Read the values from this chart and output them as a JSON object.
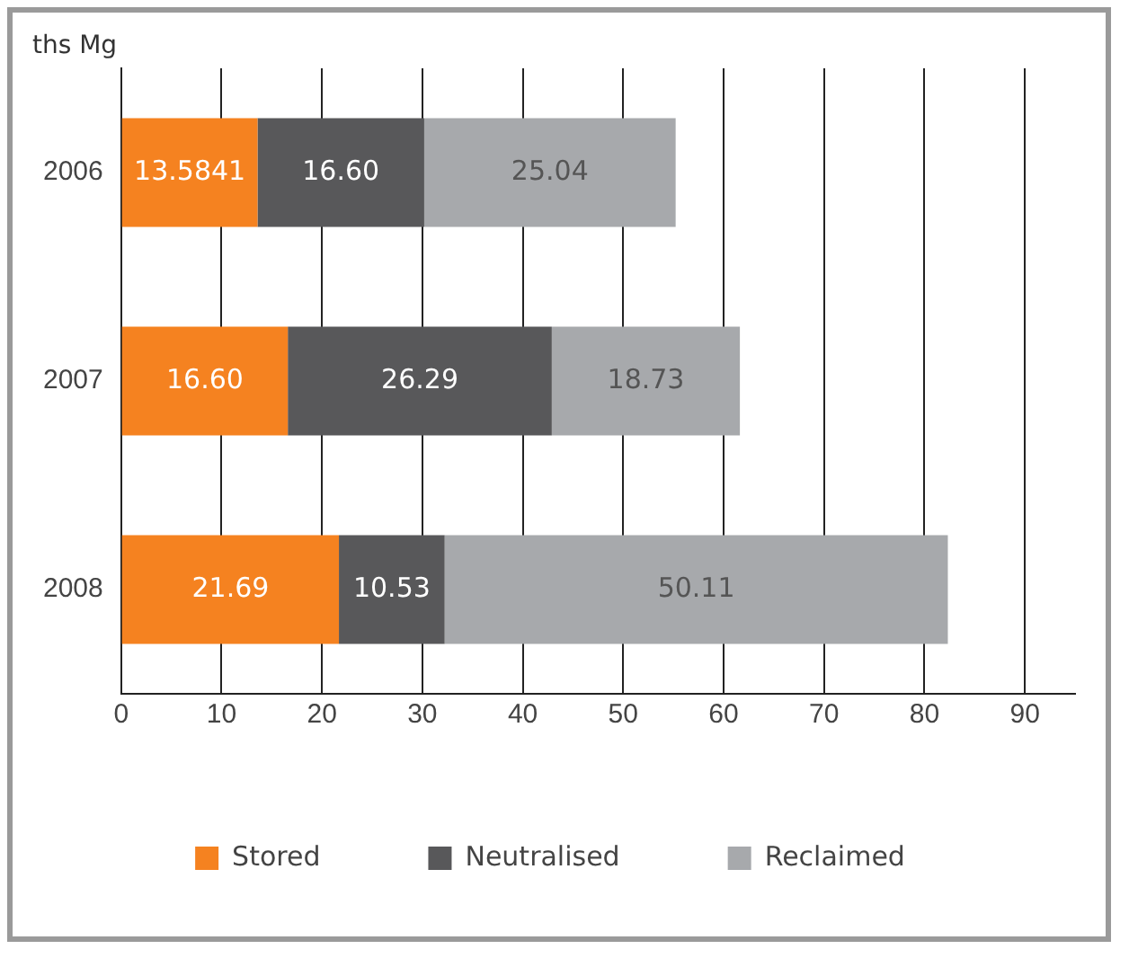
{
  "chart_data": {
    "type": "bar",
    "orientation": "horizontal",
    "stacked": true,
    "ylabel": "ths Mg",
    "categories": [
      "2006",
      "2007",
      "2008"
    ],
    "series": [
      {
        "name": "Stored",
        "color": "#f58220",
        "values": [
          13.5841,
          16.6,
          21.69
        ],
        "value_labels": [
          "13.5841",
          "16.60",
          "21.69"
        ]
      },
      {
        "name": "Neutralised",
        "color": "#58585a",
        "values": [
          16.6,
          26.29,
          10.53
        ],
        "value_labels": [
          "16.60",
          "26.29",
          "10.53"
        ]
      },
      {
        "name": "Reclaimed",
        "color": "#a7a9ac",
        "values": [
          25.04,
          18.73,
          50.11
        ],
        "value_labels": [
          "25.04",
          "18.73",
          "50.11"
        ]
      }
    ],
    "xlim": [
      0,
      95
    ],
    "xticks": [
      0,
      10,
      20,
      30,
      40,
      50,
      60,
      70,
      80,
      90
    ],
    "grid": "x",
    "legend": "bottom"
  }
}
